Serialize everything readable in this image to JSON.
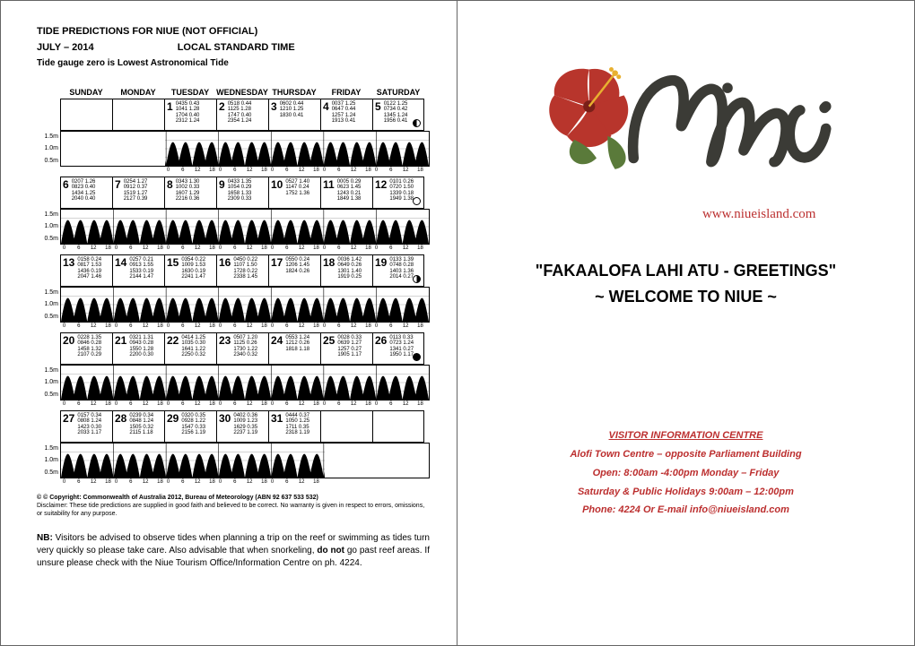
{
  "tide_header": {
    "title": "TIDE PREDICTIONS FOR NIUE (NOT OFFICIAL)",
    "month": "JULY – 2014",
    "tz": "LOCAL STANDARD TIME",
    "note": "Tide gauge zero is Lowest Astronomical Tide"
  },
  "days": [
    "SUNDAY",
    "MONDAY",
    "TUESDAY",
    "WEDNESDAY",
    "THURSDAY",
    "FRIDAY",
    "SATURDAY"
  ],
  "ylabels": [
    "1.5m",
    "1.0m",
    "0.5m"
  ],
  "xticks": [
    "0",
    "6",
    "12",
    "18",
    "0"
  ],
  "weeks": [
    {
      "empty_before": 2,
      "cells": [
        {
          "n": "1",
          "t": "0435 0.43\n1041 1.28\n1704 0.40\n2312 1.24"
        },
        {
          "n": "2",
          "t": "0518 0.44\n1125 1.28\n1747 0.40\n2354 1.24"
        },
        {
          "n": "3",
          "t": "0602 0.44\n1210 1.25\n1830 0.41"
        },
        {
          "n": "4",
          "t": "0037 1.25\n0647 0.44\n1257 1.24\n1913 0.41"
        },
        {
          "n": "5",
          "t": "0122 1.25\n0734 0.42\n1345 1.24\n1956 0.41",
          "moon": "half"
        }
      ],
      "empty_after": 0
    },
    {
      "empty_before": 0,
      "cells": [
        {
          "n": "6",
          "t": "0207 1.26\n0823 0.40\n1434 1.25\n2040 0.40"
        },
        {
          "n": "7",
          "t": "0254 1.27\n0912 0.37\n1519 1.27\n2127 0.39"
        },
        {
          "n": "8",
          "t": "0343 1.30\n1002 0.33\n1607 1.29\n2216 0.36"
        },
        {
          "n": "9",
          "t": "0433 1.35\n1054 0.29\n1658 1.33\n2309 0.33"
        },
        {
          "n": "10",
          "t": "0527 1.40\n1147 0.24\n1752 1.36"
        },
        {
          "n": "11",
          "t": "0005 0.29\n0623 1.45\n1243 0.21\n1849 1.38"
        },
        {
          "n": "12",
          "t": "0101 0.26\n0720 1.50\n1339 0.18\n1949 1.38",
          "moon": "open"
        }
      ],
      "empty_after": 0
    },
    {
      "empty_before": 0,
      "cells": [
        {
          "n": "13",
          "t": "0158 0.24\n0817 1.53\n1436 0.19\n2047 1.46"
        },
        {
          "n": "14",
          "t": "0257 0.21\n0913 1.55\n1533 0.19\n2144 1.47"
        },
        {
          "n": "15",
          "t": "0354 0.22\n1009 1.53\n1630 0.19\n2241 1.47"
        },
        {
          "n": "16",
          "t": "0450 0.22\n1107 1.50\n1728 0.22\n2338 1.45"
        },
        {
          "n": "17",
          "t": "0550 0.24\n1206 1.45\n1824 0.26"
        },
        {
          "n": "18",
          "t": "0036 1.42\n0649 0.26\n1301 1.40\n1919 0.25"
        },
        {
          "n": "19",
          "t": "0133 1.39\n0748 0.28\n1403 1.36\n2014 0.27",
          "moon": "halfr"
        }
      ],
      "empty_after": 0
    },
    {
      "empty_before": 0,
      "cells": [
        {
          "n": "20",
          "t": "0228 1.35\n0846 0.28\n1458 1.32\n2107 0.29"
        },
        {
          "n": "21",
          "t": "0321 1.31\n0943 0.28\n1550 1.28\n2200 0.30"
        },
        {
          "n": "22",
          "t": "0414 1.25\n1035 0.30\n1641 1.22\n2250 0.32"
        },
        {
          "n": "23",
          "t": "0507 1.20\n1125 0.26\n1730 1.22\n2340 0.32"
        },
        {
          "n": "24",
          "t": "0553 1.24\n1212 0.26\n1818 1.18"
        },
        {
          "n": "25",
          "t": "0028 0.33\n0639 1.27\n1257 0.27\n1905 1.17"
        },
        {
          "n": "26",
          "t": "0113 0.33\n0723 1.24\n1341 0.27\n1950 1.17",
          "moon": "full"
        }
      ],
      "empty_after": 0
    },
    {
      "empty_before": 0,
      "cells": [
        {
          "n": "27",
          "t": "0157 0.34\n0808 1.24\n1423 0.30\n2033 1.17"
        },
        {
          "n": "28",
          "t": "0239 0.34\n0848 1.24\n1505 0.32\n2115 1.18"
        },
        {
          "n": "29",
          "t": "0320 0.35\n0928 1.22\n1547 0.33\n2156 1.19"
        },
        {
          "n": "30",
          "t": "0402 0.36\n1009 1.23\n1629 0.35\n2237 1.19"
        },
        {
          "n": "31",
          "t": "0444 0.37\n1050 1.25\n1711 0.35\n2318 1.19"
        }
      ],
      "empty_after": 2
    }
  ],
  "copyright": {
    "line1": "© Copyright: Commonwealth of Australia 2012, Bureau of Meteorology (ABN 92 637 533 532)",
    "line2": "Disclaimer: These tide predictions are supplied in good faith and believed to be correct. No warranty is given in respect to errors, omissions, or suitability for any purpose."
  },
  "nb": {
    "label": "NB:",
    "text": " Visitors be advised to observe tides when planning a trip on the reef or swimming as tides turn very quickly so please take care. Also advisable that when snorkeling, ",
    "bold": "do not",
    "text2": " go past reef areas. If unsure please check with the Niue Tourism Office/Information Centre on ph. 4224."
  },
  "logo_url": "www.niueisland.com",
  "greeting": {
    "line1": "\"FAKAALOFA LAHI ATU - GREETINGS\"",
    "line2": "~ WELCOME TO NIUE ~"
  },
  "vic": {
    "title": "VISITOR INFORMATION CENTRE",
    "addr": "Alofi Town Centre – opposite Parliament Building",
    "open": "Open: 8:00am -4:00pm Monday – Friday",
    "sat": "Saturday & Public Holidays 9:00am – 12:00pm",
    "phone": "Phone: 4224 Or E-mail info@niueisland.com"
  },
  "colors": {
    "red": "#bc2f2f",
    "flower": "#b8352c",
    "ink": "#3b3b36"
  }
}
